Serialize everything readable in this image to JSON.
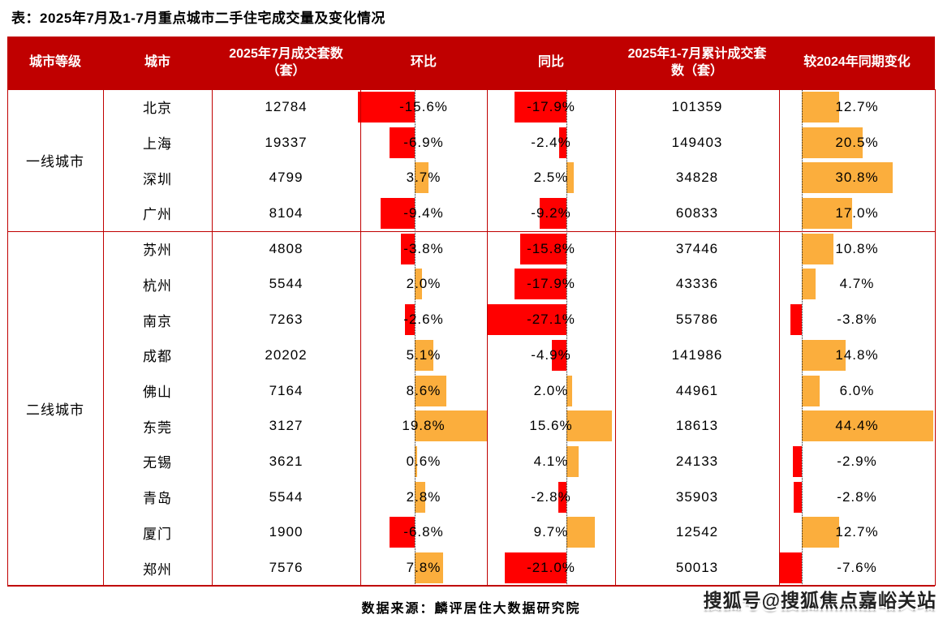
{
  "title": "表：2025年7月及1-7月重点城市二手住宅成交量及变化情况",
  "footer": {
    "source": "数据来源：麟评居住大数据研究院"
  },
  "watermark": {
    "text": "搜狐号@搜狐焦点嘉峪关站"
  },
  "colors": {
    "header_bg": "#c00000",
    "grid_line": "#c00000",
    "zero_line": "#1a1a1a",
    "bar_negative": "#ff0000",
    "bar_positive": "#fbae3d",
    "header_text": "#ffffff",
    "body_text": "#000000"
  },
  "chart_data": {
    "type": "table",
    "title": "表：2025年7月及1-7月重点城市二手住宅成交量及变化情况",
    "columns": [
      "城市等级",
      "城市",
      "2025年7月成交套数（套）",
      "环比",
      "同比",
      "2025年1-7月累计成交套数（套）",
      "较2024年同期变化"
    ],
    "bar_columns": [
      "环比",
      "同比",
      "较2024年同期变化"
    ],
    "units_note": "套",
    "tiers": [
      {
        "label": "一线城市",
        "rows": [
          {
            "city": "北京",
            "jul_units": "12784",
            "mom_pct": -15.6,
            "yoy_pct": -17.9,
            "cum_units": "101359",
            "vs2024_pct": 12.7
          },
          {
            "city": "上海",
            "jul_units": "19337",
            "mom_pct": -6.9,
            "yoy_pct": -2.4,
            "cum_units": "149403",
            "vs2024_pct": 20.5
          },
          {
            "city": "深圳",
            "jul_units": "4799",
            "mom_pct": 3.7,
            "yoy_pct": 2.5,
            "cum_units": "34828",
            "vs2024_pct": 30.8
          },
          {
            "city": "广州",
            "jul_units": "8104",
            "mom_pct": -9.4,
            "yoy_pct": -9.2,
            "cum_units": "60833",
            "vs2024_pct": 17.0
          }
        ]
      },
      {
        "label": "二线城市",
        "rows": [
          {
            "city": "苏州",
            "jul_units": "4808",
            "mom_pct": -3.8,
            "yoy_pct": -15.8,
            "cum_units": "37446",
            "vs2024_pct": 10.8
          },
          {
            "city": "杭州",
            "jul_units": "5544",
            "mom_pct": 2.0,
            "yoy_pct": -17.9,
            "cum_units": "43336",
            "vs2024_pct": 4.7
          },
          {
            "city": "南京",
            "jul_units": "7263",
            "mom_pct": -2.6,
            "yoy_pct": -27.1,
            "cum_units": "55786",
            "vs2024_pct": -3.8
          },
          {
            "city": "成都",
            "jul_units": "20202",
            "mom_pct": 5.1,
            "yoy_pct": -4.9,
            "cum_units": "141986",
            "vs2024_pct": 14.8
          },
          {
            "city": "佛山",
            "jul_units": "7164",
            "mom_pct": 8.6,
            "yoy_pct": 2.0,
            "cum_units": "44961",
            "vs2024_pct": 6.0
          },
          {
            "city": "东莞",
            "jul_units": "3127",
            "mom_pct": 19.8,
            "yoy_pct": 15.6,
            "cum_units": "18613",
            "vs2024_pct": 44.4
          },
          {
            "city": "无锡",
            "jul_units": "3621",
            "mom_pct": 0.6,
            "yoy_pct": 4.1,
            "cum_units": "24133",
            "vs2024_pct": -2.9
          },
          {
            "city": "青岛",
            "jul_units": "5544",
            "mom_pct": 2.8,
            "yoy_pct": -2.8,
            "cum_units": "35903",
            "vs2024_pct": -2.8
          },
          {
            "city": "厦门",
            "jul_units": "1900",
            "mom_pct": -6.8,
            "yoy_pct": 9.7,
            "cum_units": "12542",
            "vs2024_pct": 12.7
          },
          {
            "city": "郑州",
            "jul_units": "7576",
            "mom_pct": 7.8,
            "yoy_pct": -21.0,
            "cum_units": "50013",
            "vs2024_pct": -7.6
          }
        ]
      }
    ]
  }
}
